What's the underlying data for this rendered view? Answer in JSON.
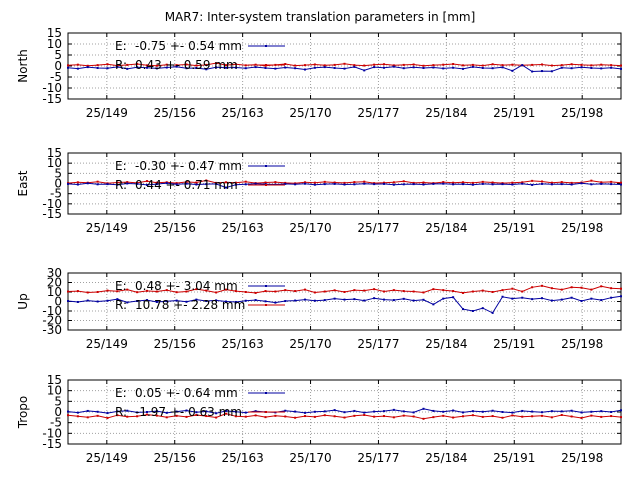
{
  "title": "MAR7: Inter-system translation parameters in [mm]",
  "colors": {
    "E": "#0000a0",
    "R": "#cc0000",
    "grid": "#a0a0a0",
    "axis": "#000000"
  },
  "chart_data": [
    {
      "type": "line",
      "ylabel": "North",
      "ylim": [
        -15,
        15
      ],
      "yticks": [
        15,
        10,
        5,
        0,
        -5,
        -10,
        -15
      ],
      "xlim": [
        145,
        202
      ],
      "xticks": [
        "25/149",
        "25/156",
        "25/163",
        "25/170",
        "25/177",
        "25/184",
        "25/191",
        "25/198"
      ],
      "grid": "dotted",
      "series": [
        {
          "name": "E:",
          "stat": "-0.75 +- 0.54 mm",
          "y": [
            -0.8,
            -1.2,
            -0.5,
            -0.9,
            -1.0,
            -0.4,
            -1.3,
            -0.6,
            -0.8,
            -1.1,
            -0.7,
            -0.3,
            -1.0,
            -0.9,
            -1.5,
            -0.6,
            -0.8,
            -0.7,
            -1.0,
            -0.5,
            -0.9,
            -1.2,
            -0.7,
            -1.0,
            -1.6,
            -0.8,
            -0.5,
            -0.9,
            -1.2,
            -0.4,
            -2.0,
            -0.5,
            -0.8,
            -0.3,
            -1.0,
            -0.6,
            -0.9,
            -0.7,
            -1.1,
            -0.8,
            -1.3,
            -0.4,
            -0.9,
            -1.0,
            -0.6,
            -2.2,
            0.4,
            -2.5,
            -2.3,
            -2.4,
            -0.8,
            -1.0,
            -0.6,
            -0.9,
            -1.1,
            -0.8,
            -1.3
          ]
        },
        {
          "name": "R:",
          "stat": "0.43 +- 0.59 mm",
          "y": [
            0.3,
            0.6,
            0.1,
            0.4,
            0.8,
            0.2,
            0.5,
            0.9,
            0.3,
            0.1,
            0.6,
            0.4,
            0.7,
            0.2,
            0.5,
            1.3,
            0.4,
            0.8,
            0.3,
            0.6,
            0.1,
            0.5,
            0.9,
            0.2,
            0.4,
            0.7,
            0.3,
            0.5,
            1.0,
            0.4,
            0.2,
            0.6,
            0.8,
            0.3,
            0.5,
            0.7,
            0.1,
            0.4,
            0.6,
            0.9,
            0.3,
            0.5,
            0.2,
            0.8,
            0.4,
            0.6,
            0.3,
            0.5,
            0.7,
            0.2,
            0.4,
            0.8,
            0.5,
            0.3,
            0.6,
            0.4,
            0.2
          ]
        }
      ]
    },
    {
      "type": "line",
      "ylabel": "East",
      "ylim": [
        -15,
        15
      ],
      "yticks": [
        15,
        10,
        5,
        0,
        -5,
        -10,
        -15
      ],
      "xlim": [
        145,
        202
      ],
      "xticks": [
        "25/149",
        "25/156",
        "25/163",
        "25/170",
        "25/177",
        "25/184",
        "25/191",
        "25/198"
      ],
      "grid": "dotted",
      "series": [
        {
          "name": "E:",
          "stat": "-0.30 +- 0.47 mm",
          "y": [
            -0.2,
            -0.5,
            0.1,
            -0.4,
            -0.3,
            -0.6,
            0.0,
            -0.2,
            -0.7,
            -0.3,
            0.2,
            -0.4,
            -0.1,
            -0.5,
            -0.3,
            -0.2,
            -2.0,
            -0.6,
            -0.4,
            -0.1,
            -0.3,
            -0.5,
            -0.2,
            -0.4,
            -0.1,
            -0.6,
            -0.3,
            -0.2,
            -0.5,
            -0.4,
            -0.1,
            -0.3,
            -0.2,
            -0.6,
            -0.4,
            -0.3,
            -0.5,
            -0.2,
            -0.1,
            -0.4,
            -0.3,
            -0.6,
            -0.2,
            -0.4,
            -0.3,
            -0.5,
            -0.1,
            -0.7,
            -0.2,
            -0.4,
            -0.3,
            -0.5,
            0.1,
            -0.4,
            -0.2,
            -0.3,
            -0.5
          ]
        },
        {
          "name": "R:",
          "stat": "0.44 +- 0.71 mm",
          "y": [
            0.2,
            0.6,
            0.4,
            0.9,
            0.1,
            0.5,
            0.7,
            0.3,
            1.2,
            0.4,
            0.6,
            0.2,
            0.8,
            0.5,
            1.5,
            0.3,
            0.6,
            0.4,
            0.9,
            0.2,
            0.5,
            0.7,
            0.3,
            0.1,
            0.6,
            0.4,
            0.8,
            0.5,
            0.3,
            0.7,
            0.9,
            0.2,
            0.4,
            0.6,
            1.1,
            0.3,
            0.5,
            0.2,
            0.7,
            0.4,
            0.6,
            0.3,
            0.8,
            0.5,
            0.2,
            0.4,
            0.6,
            1.3,
            1.0,
            0.4,
            0.7,
            0.3,
            0.5,
            1.4,
            0.6,
            0.8,
            0.4
          ]
        }
      ]
    },
    {
      "type": "line",
      "ylabel": "Up",
      "ylim": [
        -30,
        30
      ],
      "yticks": [
        30,
        20,
        10,
        0,
        -10,
        -20,
        -30
      ],
      "xlim": [
        145,
        202
      ],
      "xticks": [
        "25/149",
        "25/156",
        "25/163",
        "25/170",
        "25/177",
        "25/184",
        "25/191",
        "25/198"
      ],
      "grid": "dotted",
      "series": [
        {
          "name": "E:",
          "stat": "0.48 +- 3.04 mm",
          "y": [
            0.5,
            -0.5,
            1.0,
            0.0,
            0.8,
            2.5,
            -1.0,
            0.5,
            1.5,
            -0.5,
            0.3,
            1.0,
            -0.3,
            2.0,
            0.5,
            1.2,
            0.0,
            -0.5,
            0.8,
            1.5,
            0.2,
            -1.2,
            0.5,
            1.0,
            2.0,
            0.8,
            1.5,
            3.0,
            2.0,
            2.5,
            1.0,
            3.5,
            2.0,
            1.5,
            2.8,
            1.0,
            1.8,
            -3.0,
            3.0,
            4.5,
            -8.0,
            -10.0,
            -7.0,
            -12.0,
            5.0,
            3.0,
            4.0,
            2.5,
            3.5,
            1.0,
            2.0,
            4.0,
            0.5,
            3.0,
            1.5,
            4.0,
            5.5
          ]
        },
        {
          "name": "R:",
          "stat": "10.78 +- 2.28 mm",
          "y": [
            10.5,
            11.0,
            9.5,
            10.0,
            11.5,
            10.8,
            12.5,
            9.8,
            11.2,
            10.5,
            12.0,
            9.8,
            10.5,
            13.0,
            11.5,
            9.5,
            12.5,
            11.0,
            10.0,
            9.0,
            11.0,
            10.5,
            12.0,
            11.0,
            12.5,
            9.5,
            10.5,
            11.8,
            10.0,
            12.0,
            11.5,
            13.0,
            10.5,
            12.0,
            11.0,
            10.5,
            9.5,
            13.0,
            12.0,
            11.0,
            9.0,
            10.5,
            11.5,
            10.0,
            12.0,
            13.5,
            10.5,
            15.0,
            16.5,
            14.0,
            12.5,
            15.0,
            14.5,
            12.5,
            16.0,
            14.0,
            13.5
          ]
        }
      ]
    },
    {
      "type": "line",
      "ylabel": "Tropo",
      "ylim": [
        -15,
        15
      ],
      "yticks": [
        15,
        10,
        5,
        0,
        -5,
        -10,
        -15
      ],
      "xlim": [
        145,
        202
      ],
      "xticks": [
        "25/149",
        "25/156",
        "25/163",
        "25/170",
        "25/177",
        "25/184",
        "25/191",
        "25/198"
      ],
      "grid": "dotted",
      "series": [
        {
          "name": "E:",
          "stat": "0.05 +- 0.64 mm",
          "y": [
            0.2,
            -0.3,
            0.5,
            0.1,
            -0.5,
            0.3,
            0.6,
            -0.2,
            0.0,
            0.4,
            -0.4,
            0.2,
            0.7,
            -0.1,
            0.3,
            -0.6,
            0.5,
            0.1,
            -0.3,
            0.4,
            0.0,
            -0.2,
            0.6,
            0.2,
            -0.4,
            0.1,
            0.3,
            0.9,
            -0.1,
            0.5,
            -0.3,
            0.2,
            0.4,
            1.0,
            0.3,
            -0.2,
            1.5,
            0.5,
            0.1,
            0.7,
            -0.2,
            0.4,
            0.1,
            0.6,
            0.0,
            -0.3,
            0.5,
            0.2,
            -0.1,
            0.4,
            0.3,
            0.6,
            -0.2,
            0.1,
            0.4,
            0.0,
            0.8
          ]
        },
        {
          "name": "R:",
          "stat": "-1.97 +- 0.63 mm",
          "y": [
            -1.5,
            -2.0,
            -2.5,
            -1.8,
            -2.8,
            -1.5,
            -2.2,
            -2.0,
            -1.2,
            -1.7,
            -2.5,
            -1.8,
            -2.3,
            -1.4,
            -1.9,
            -2.6,
            -0.8,
            -2.0,
            -2.2,
            -1.6,
            -2.4,
            -1.8,
            -2.1,
            -2.7,
            -1.9,
            -2.3,
            -1.5,
            -2.0,
            -2.6,
            -1.8,
            -1.4,
            -2.2,
            -1.9,
            -2.5,
            -1.7,
            -2.1,
            -3.2,
            -2.4,
            -1.8,
            -2.6,
            -2.0,
            -1.5,
            -2.3,
            -1.9,
            -2.7,
            -1.6,
            -2.2,
            -2.0,
            -1.8,
            -2.5,
            -1.4,
            -2.1,
            -2.8,
            -1.7,
            -2.3,
            -1.9,
            -2.4
          ]
        }
      ]
    }
  ]
}
